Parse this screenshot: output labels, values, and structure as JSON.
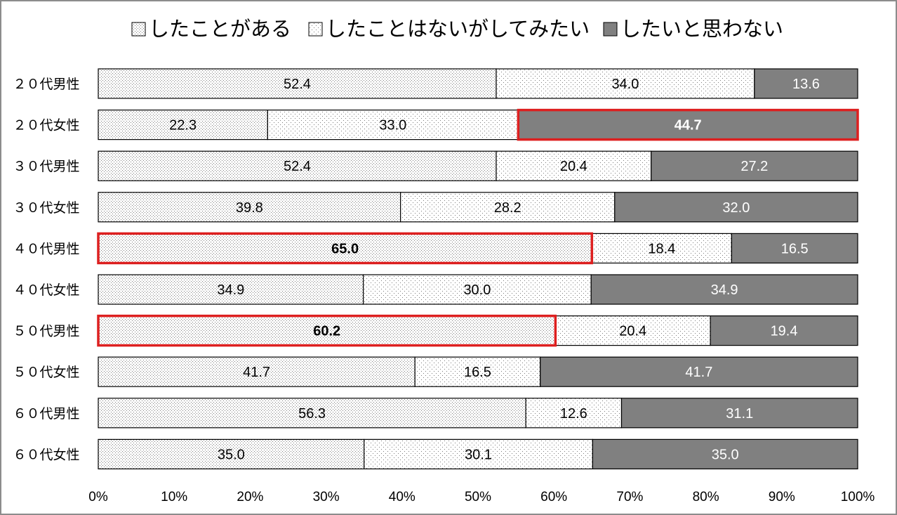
{
  "chart_data": {
    "type": "bar",
    "orientation": "horizontal",
    "stacked": "percent",
    "title": "",
    "xlabel": "",
    "ylabel": "",
    "xlim": [
      0,
      100
    ],
    "x_ticks": [
      "0%",
      "10%",
      "20%",
      "30%",
      "40%",
      "50%",
      "60%",
      "70%",
      "80%",
      "90%",
      "100%"
    ],
    "legend_position": "top",
    "grid": false,
    "categories": [
      "２０代男性",
      "２０代女性",
      "３０代男性",
      "３０代女性",
      "４０代男性",
      "４０代女性",
      "５０代男性",
      "５０代女性",
      "６０代男性",
      "６０代女性"
    ],
    "series": [
      {
        "name": "したことがある",
        "fill": "light-dots",
        "color": "#ffffff",
        "values": [
          52.4,
          22.3,
          52.4,
          39.8,
          65.0,
          34.9,
          60.2,
          41.7,
          56.3,
          35.0
        ],
        "labels": [
          "52.4",
          "22.3",
          "52.4",
          "39.8",
          "65.0",
          "34.9",
          "60.2",
          "41.7",
          "56.3",
          "35.0"
        ]
      },
      {
        "name": "したことはないがしてみたい",
        "fill": "sparse-dots",
        "color": "#ffffff",
        "values": [
          34.0,
          33.0,
          20.4,
          28.2,
          18.4,
          30.0,
          20.4,
          16.5,
          12.6,
          30.1
        ],
        "labels": [
          "34.0",
          "33.0",
          "20.4",
          "28.2",
          "18.4",
          "30.0",
          "20.4",
          "16.5",
          "12.6",
          "30.1"
        ]
      },
      {
        "name": "したいと思わない",
        "fill": "solid",
        "color": "#808080",
        "values": [
          13.6,
          44.7,
          27.2,
          32.0,
          16.5,
          34.9,
          19.4,
          41.7,
          31.1,
          35.0
        ],
        "labels": [
          "13.6",
          "44.7",
          "27.2",
          "32.0",
          "16.5",
          "34.9",
          "19.4",
          "41.7",
          "31.1",
          "35.0"
        ]
      }
    ],
    "highlights": [
      {
        "category_index": 1,
        "series_index": 2,
        "color": "#dd1f1f"
      },
      {
        "category_index": 4,
        "series_index": 0,
        "color": "#dd1f1f"
      },
      {
        "category_index": 6,
        "series_index": 0,
        "color": "#dd1f1f"
      }
    ]
  }
}
